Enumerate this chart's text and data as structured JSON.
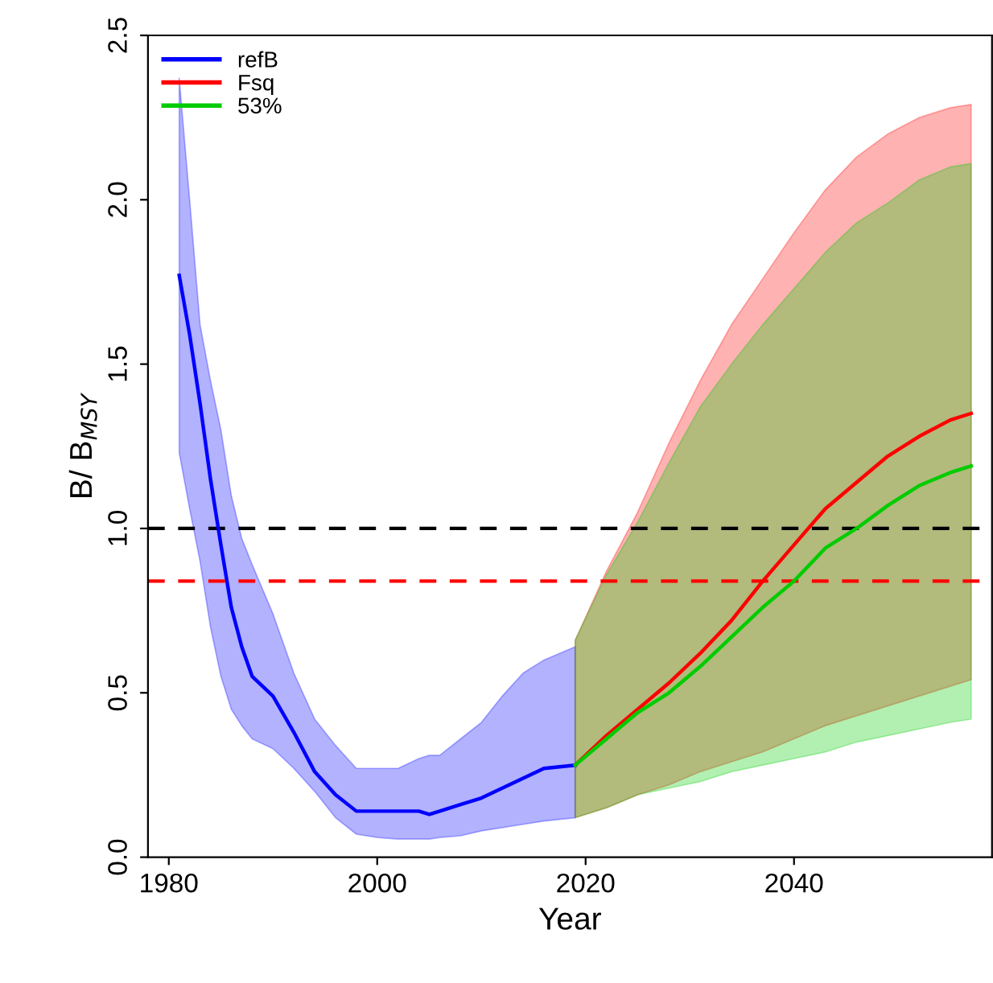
{
  "chart_data": {
    "type": "line",
    "xlabel": "Year",
    "ylabel": "B/ B$_{MSY}$",
    "xlim": [
      1978,
      2059
    ],
    "ylim": [
      0,
      2.5
    ],
    "xticks": [
      1980,
      2000,
      2020,
      2040
    ],
    "yticks": [
      {
        "value": 0,
        "label": "0.0"
      },
      {
        "value": 0.5,
        "label": "0.5"
      },
      {
        "value": 1,
        "label": "1.0"
      },
      {
        "value": 1.5,
        "label": "1.5"
      },
      {
        "value": 2,
        "label": "2.0"
      },
      {
        "value": 2.5,
        "label": "2.5"
      }
    ],
    "grid": false,
    "legend": "top left",
    "line_style": "solid",
    "marker": "none",
    "ref_lines": [
      {
        "axis": "y",
        "value": 1.0,
        "color": "#000000",
        "line_style": "dashed"
      },
      {
        "axis": "y",
        "value": 0.84,
        "color": "#ff0000",
        "line_style": "dashed"
      }
    ],
    "series": [
      {
        "name": "refB",
        "color": "#0000ff",
        "x": [
          1981,
          1982,
          1983,
          1984,
          1985,
          1986,
          1987,
          1988,
          1990,
          1992,
          1994,
          1996,
          1998,
          2000,
          2002,
          2004,
          2005,
          2006,
          2008,
          2010,
          2012,
          2014,
          2016,
          2019
        ],
        "values": [
          1.77,
          1.59,
          1.38,
          1.15,
          0.95,
          0.76,
          0.64,
          0.55,
          0.49,
          0.38,
          0.26,
          0.19,
          0.14,
          0.14,
          0.14,
          0.14,
          0.13,
          0.14,
          0.16,
          0.18,
          0.21,
          0.24,
          0.27,
          0.28
        ],
        "lower": [
          1.23,
          1.06,
          0.9,
          0.7,
          0.55,
          0.45,
          0.4,
          0.36,
          0.33,
          0.27,
          0.2,
          0.12,
          0.07,
          0.06,
          0.055,
          0.055,
          0.055,
          0.06,
          0.065,
          0.08,
          0.09,
          0.1,
          0.11,
          0.12
        ],
        "upper": [
          2.37,
          2.0,
          1.62,
          1.45,
          1.3,
          1.1,
          0.97,
          0.89,
          0.74,
          0.56,
          0.42,
          0.34,
          0.27,
          0.27,
          0.27,
          0.3,
          0.31,
          0.31,
          0.36,
          0.41,
          0.49,
          0.56,
          0.6,
          0.64
        ]
      },
      {
        "name": "Fsq",
        "color": "#ff0000",
        "x": [
          2019,
          2022,
          2025,
          2028,
          2031,
          2034,
          2037,
          2040,
          2043,
          2046,
          2049,
          2052,
          2055,
          2057
        ],
        "values": [
          0.28,
          0.37,
          0.45,
          0.53,
          0.62,
          0.72,
          0.84,
          0.95,
          1.06,
          1.14,
          1.22,
          1.28,
          1.33,
          1.35
        ],
        "lower": [
          0.12,
          0.15,
          0.19,
          0.22,
          0.26,
          0.29,
          0.32,
          0.36,
          0.4,
          0.43,
          0.46,
          0.49,
          0.52,
          0.54
        ],
        "upper": [
          0.66,
          0.87,
          1.05,
          1.26,
          1.45,
          1.62,
          1.76,
          1.9,
          2.03,
          2.13,
          2.2,
          2.25,
          2.28,
          2.29
        ]
      },
      {
        "name": "53%",
        "color": "#00cc00",
        "x": [
          2019,
          2022,
          2025,
          2028,
          2031,
          2034,
          2037,
          2040,
          2043,
          2046,
          2049,
          2052,
          2055,
          2057
        ],
        "values": [
          0.28,
          0.36,
          0.44,
          0.5,
          0.58,
          0.67,
          0.76,
          0.84,
          0.94,
          1.0,
          1.07,
          1.13,
          1.17,
          1.19
        ],
        "lower": [
          0.12,
          0.15,
          0.19,
          0.21,
          0.23,
          0.26,
          0.28,
          0.3,
          0.32,
          0.35,
          0.37,
          0.39,
          0.41,
          0.42
        ],
        "upper": [
          0.66,
          0.86,
          1.02,
          1.2,
          1.37,
          1.5,
          1.62,
          1.73,
          1.84,
          1.93,
          1.99,
          2.06,
          2.1,
          2.11
        ]
      }
    ]
  }
}
